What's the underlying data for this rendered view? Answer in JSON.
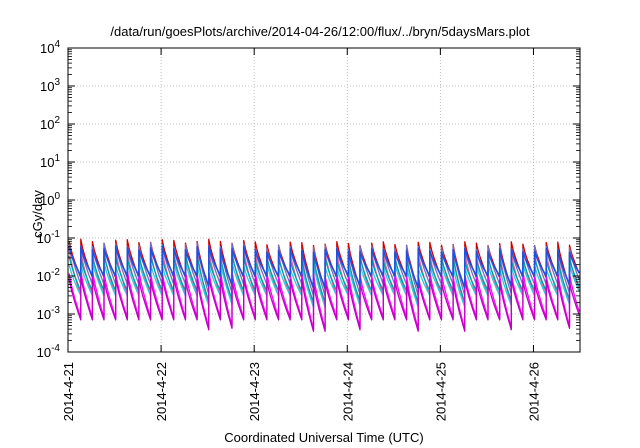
{
  "chart_data": {
    "type": "line",
    "title": "/data/run/goesPlots/archive/2014-04-26/12:00/flux/../bryn/5daysMars.plot",
    "xlabel": "Coordinated Universal Time (UTC)",
    "ylabel": "cGy/day",
    "yscale": "log",
    "ylim": [
      0.0001,
      10000
    ],
    "xlim": [
      "2014-04-21 00:00",
      "2014-04-26 12:00"
    ],
    "grid": true,
    "legend": "none",
    "x_ticks": [
      "2014-4-21",
      "2014-4-22",
      "2014-4-23",
      "2014-4-24",
      "2014-4-25",
      "2014-4-26"
    ],
    "y_ticks": [
      {
        "value": 0.0001,
        "base": "10",
        "exp": "-4"
      },
      {
        "value": 0.001,
        "base": "10",
        "exp": "-3"
      },
      {
        "value": 0.01,
        "base": "10",
        "exp": "-2"
      },
      {
        "value": 0.1,
        "base": "10",
        "exp": "-1"
      },
      {
        "value": 1,
        "base": "10",
        "exp": "0"
      },
      {
        "value": 10,
        "base": "10",
        "exp": "1"
      },
      {
        "value": 100,
        "base": "10",
        "exp": "2"
      },
      {
        "value": 1000,
        "base": "10",
        "exp": "3"
      },
      {
        "value": 10000,
        "base": "10",
        "exp": "4"
      }
    ],
    "sawtooth_cycles_per_day": 8,
    "series": [
      {
        "color": "#d00000",
        "peak": 0.075,
        "trough": 0.009
      },
      {
        "color": "#e060a0",
        "peak": 0.04,
        "trough": 0.003
      },
      {
        "color": "#7070c0",
        "peak": 0.06,
        "trough": 0.006
      },
      {
        "color": "#00a0a0",
        "peak": 0.03,
        "trough": 0.004
      },
      {
        "color": "#30c8e0",
        "peak": 0.02,
        "trough": 0.003
      },
      {
        "color": "#ff00ff",
        "peak": 0.012,
        "trough": 0.0008
      },
      {
        "color": "#c000c0",
        "peak": 0.008,
        "trough": 0.0007
      },
      {
        "color": "#2050e0",
        "peak": 0.05,
        "trough": 0.01
      }
    ],
    "trough_dips": [
      {
        "day": 1.55,
        "factor": 0.55
      },
      {
        "day": 1.8,
        "factor": 0.6
      },
      {
        "day": 2.7,
        "factor": 0.5
      },
      {
        "day": 3.1,
        "factor": 0.55
      },
      {
        "day": 3.75,
        "factor": 0.5
      },
      {
        "day": 4.3,
        "factor": 0.5
      },
      {
        "day": 4.8,
        "factor": 0.55
      },
      {
        "day": 5.35,
        "factor": 0.6
      }
    ]
  }
}
